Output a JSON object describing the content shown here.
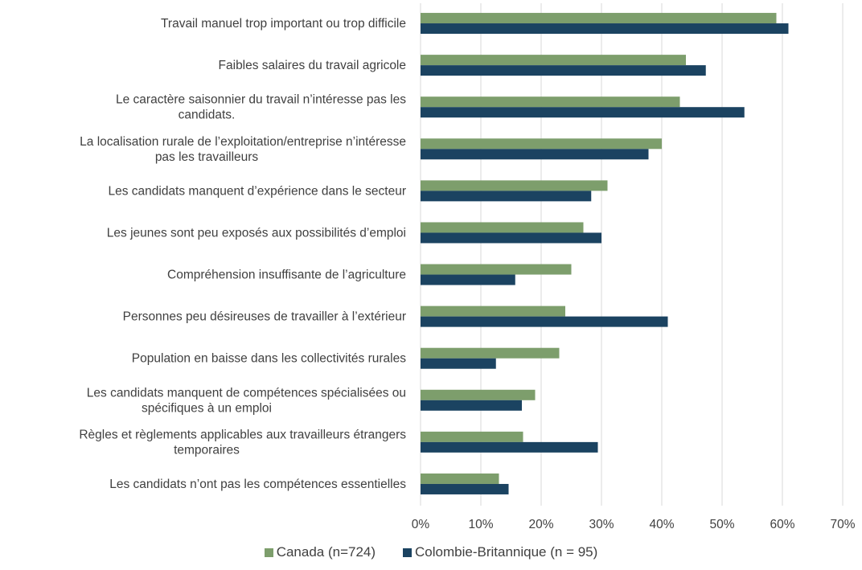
{
  "chart_data": {
    "type": "bar",
    "orientation": "horizontal",
    "categories": [
      [
        "Travail manuel trop important ou trop difficile"
      ],
      [
        "Faibles salaires du travail agricole"
      ],
      [
        "Le caractère saisonnier du travail n’intéresse pas les",
        "candidats."
      ],
      [
        "La localisation rurale de l’exploitation/entreprise n’intéresse",
        "pas les travailleurs"
      ],
      [
        "Les candidats manquent d’expérience dans le secteur"
      ],
      [
        "Les jeunes sont peu exposés aux possibilités d’emploi"
      ],
      [
        "Compréhension insuffisante de l’agriculture"
      ],
      [
        "Personnes peu désireuses de travailler à l’extérieur"
      ],
      [
        "Population en baisse dans les collectivités rurales"
      ],
      [
        "Les candidats manquent de compétences spécialisées ou",
        "spécifiques à un emploi"
      ],
      [
        "Règles et règlements applicables aux travailleurs étrangers",
        "temporaires"
      ],
      [
        "Les candidats n’ont pas les compétences essentielles"
      ]
    ],
    "series": [
      {
        "name": "Canada (n=724)",
        "color": "#7d9e6c",
        "values": [
          59,
          44,
          43,
          40,
          31,
          27,
          25,
          24,
          23,
          19,
          17,
          13
        ]
      },
      {
        "name": "Colombie-Britannique (n = 95)",
        "color": "#1b4361",
        "values": [
          61,
          47.3,
          53.7,
          37.8,
          28.3,
          30,
          15.7,
          41,
          12.5,
          16.8,
          29.4,
          14.6
        ]
      }
    ],
    "xlim": [
      0,
      70
    ],
    "xticks": [
      0,
      10,
      20,
      30,
      40,
      50,
      60,
      70
    ],
    "xtick_labels": [
      "0%",
      "10%",
      "20%",
      "30%",
      "40%",
      "50%",
      "60%",
      "70%"
    ],
    "grid": "vertical",
    "legend": "bottom-center",
    "title": "",
    "xlabel": "",
    "ylabel": ""
  }
}
